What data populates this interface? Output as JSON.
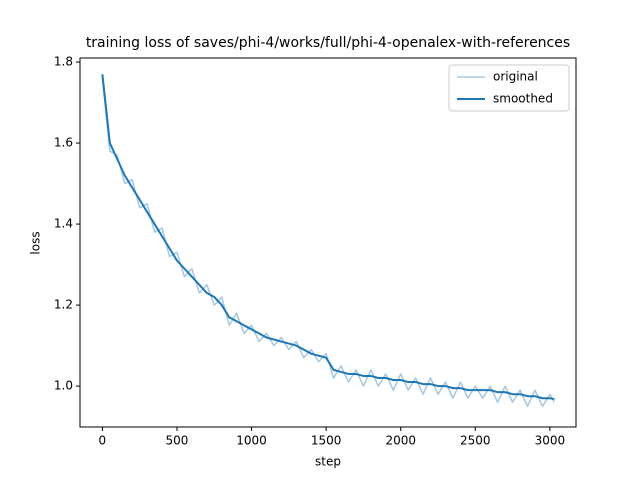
{
  "chart_data": {
    "type": "line",
    "title": "training loss of saves/phi-4/works/full/phi-4-openalex-with-references",
    "x_label": "step",
    "y_label": "loss",
    "x": [
      0,
      50,
      100,
      150,
      200,
      250,
      300,
      350,
      400,
      450,
      500,
      550,
      600,
      650,
      700,
      750,
      800,
      850,
      900,
      950,
      1000,
      1050,
      1100,
      1150,
      1200,
      1250,
      1300,
      1350,
      1400,
      1450,
      1500,
      1550,
      1600,
      1650,
      1700,
      1750,
      1800,
      1850,
      1900,
      1950,
      2000,
      2050,
      2100,
      2150,
      2200,
      2250,
      2300,
      2350,
      2400,
      2450,
      2500,
      2550,
      2600,
      2650,
      2700,
      2750,
      2800,
      2850,
      2900,
      2950,
      3000,
      3030
    ],
    "series": [
      {
        "name": "original",
        "color": "#a5c7e2",
        "width": 1.5,
        "values": [
          1.76,
          1.58,
          1.57,
          1.5,
          1.51,
          1.44,
          1.45,
          1.38,
          1.39,
          1.32,
          1.33,
          1.27,
          1.29,
          1.23,
          1.25,
          1.2,
          1.22,
          1.15,
          1.18,
          1.13,
          1.15,
          1.11,
          1.13,
          1.1,
          1.12,
          1.09,
          1.11,
          1.07,
          1.09,
          1.06,
          1.08,
          1.02,
          1.05,
          1.01,
          1.04,
          1.0,
          1.04,
          1.0,
          1.03,
          0.99,
          1.03,
          0.99,
          1.02,
          0.98,
          1.02,
          0.98,
          1.01,
          0.97,
          1.01,
          0.97,
          1.0,
          0.97,
          1.0,
          0.96,
          1.0,
          0.96,
          0.99,
          0.95,
          0.99,
          0.95,
          0.98,
          0.96
        ]
      },
      {
        "name": "smoothed",
        "color": "#1f77b4",
        "width": 2,
        "values": [
          1.77,
          1.6,
          1.56,
          1.52,
          1.49,
          1.46,
          1.43,
          1.4,
          1.37,
          1.34,
          1.31,
          1.29,
          1.27,
          1.25,
          1.23,
          1.22,
          1.2,
          1.17,
          1.16,
          1.15,
          1.14,
          1.13,
          1.12,
          1.115,
          1.11,
          1.105,
          1.1,
          1.09,
          1.08,
          1.075,
          1.07,
          1.04,
          1.035,
          1.03,
          1.03,
          1.025,
          1.025,
          1.02,
          1.02,
          1.015,
          1.015,
          1.01,
          1.01,
          1.005,
          1.005,
          1.0,
          1.0,
          0.995,
          0.995,
          0.99,
          0.99,
          0.99,
          0.99,
          0.985,
          0.985,
          0.98,
          0.98,
          0.975,
          0.975,
          0.97,
          0.97,
          0.968
        ]
      }
    ],
    "xlim": [
      -150,
      3175
    ],
    "ylim": [
      0.899,
      1.81
    ],
    "xticks": [
      0,
      500,
      1000,
      1500,
      2000,
      2500,
      3000
    ],
    "yticks": [
      {
        "value": 1,
        "label": "1.0"
      },
      1.2,
      1.4,
      1.6,
      1.8
    ],
    "legend": "upper right",
    "grid": false
  }
}
